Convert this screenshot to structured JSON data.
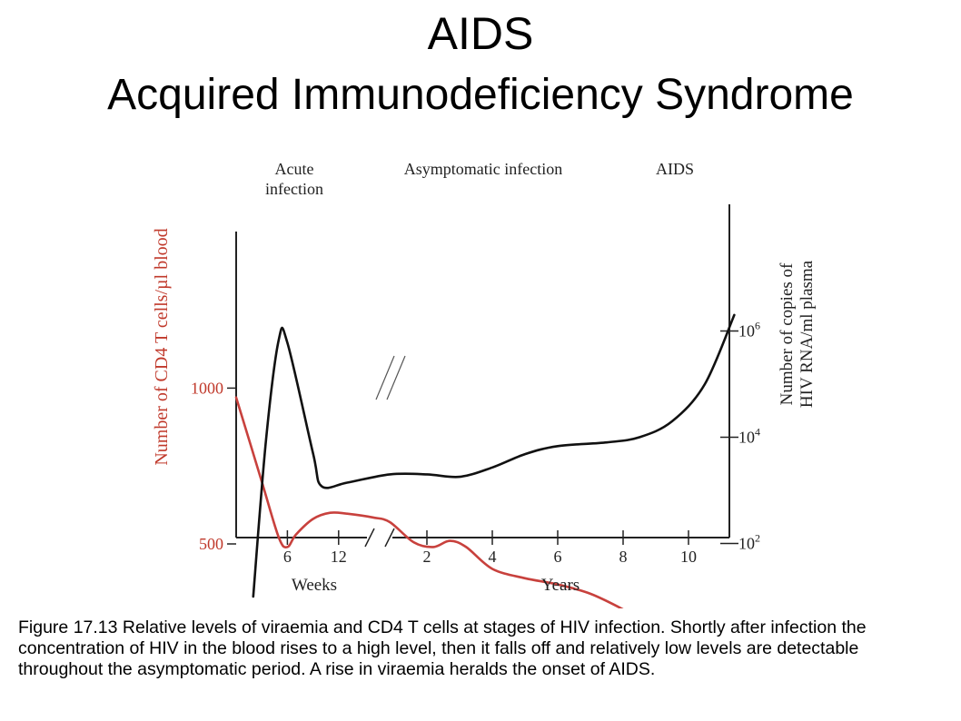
{
  "slide": {
    "title": "AIDS",
    "subtitle": "Acquired Immunodeficiency Syndrome",
    "caption": "Figure 17.13 Relative levels of viraemia and CD4 T cells at stages of HIV infection. Shortly after infection the concentration of HIV in the blood rises to a high level, then it falls off and relatively low levels are detectable throughout the asymptomatic period. A rise in viraemia heralds the onset of AIDS."
  },
  "chart_data": {
    "type": "line",
    "stages": [
      "Acute infection",
      "Asymptomatic infection",
      "AIDS"
    ],
    "stage_lines": [
      [
        "Acute",
        "infection"
      ],
      [
        "Asymptomatic infection"
      ],
      [
        "AIDS"
      ]
    ],
    "x_axis": {
      "weeks_label": "Weeks",
      "years_label": "Years",
      "weeks_ticks": [
        6,
        12
      ],
      "years_ticks": [
        2,
        4,
        6,
        8,
        10
      ],
      "break": "between 12 weeks and 2 years"
    },
    "y_left": {
      "label": "Number of CD4 T cells/µl blood",
      "ticks": [
        500,
        1000
      ],
      "color": "#c0392b"
    },
    "y_right": {
      "label_lines": [
        "Number of copies of",
        "HIV RNA/ml plasma"
      ],
      "ticks": [
        {
          "base": "10",
          "exp": "2",
          "value": 100
        },
        {
          "base": "10",
          "exp": "4",
          "value": 10000
        },
        {
          "base": "10",
          "exp": "6",
          "value": 1000000
        }
      ],
      "scale": "log",
      "color": "#000000"
    },
    "series": [
      {
        "name": "CD4 T cells",
        "color": "#c8413d",
        "axis": "left",
        "points": [
          [
            "week",
            0,
            970
          ],
          [
            "week",
            3,
            700
          ],
          [
            "week",
            5,
            520
          ],
          [
            "week",
            6,
            490
          ],
          [
            "week",
            7,
            530
          ],
          [
            "week",
            9,
            580
          ],
          [
            "week",
            11,
            600
          ],
          [
            "week",
            13,
            597
          ],
          [
            "week",
            16,
            585
          ],
          [
            "week",
            18,
            570
          ],
          [
            "year",
            1.6,
            505
          ],
          [
            "year",
            2.2,
            490
          ],
          [
            "year",
            2.7,
            510
          ],
          [
            "year",
            3.2,
            490
          ],
          [
            "year",
            4,
            420
          ],
          [
            "year",
            5,
            390
          ],
          [
            "year",
            6,
            370
          ],
          [
            "year",
            7,
            340
          ],
          [
            "year",
            8,
            290
          ],
          [
            "year",
            9,
            230
          ],
          [
            "year",
            10,
            160
          ],
          [
            "year",
            11,
            95
          ]
        ]
      },
      {
        "name": "HIV RNA",
        "color": "#111111",
        "axis": "right",
        "points": [
          [
            "week",
            2,
            10
          ],
          [
            "week",
            3.5,
            9000
          ],
          [
            "week",
            5,
            700000
          ],
          [
            "week",
            6,
            600000
          ],
          [
            "week",
            9,
            5000
          ],
          [
            "week",
            10,
            1200
          ],
          [
            "week",
            13,
            1400
          ],
          [
            "week",
            18,
            2000
          ],
          [
            "year",
            2,
            2000
          ],
          [
            "year",
            3,
            1800
          ],
          [
            "year",
            4,
            2700
          ],
          [
            "year",
            5,
            4800
          ],
          [
            "year",
            6,
            6800
          ],
          [
            "year",
            7.5,
            8000
          ],
          [
            "year",
            8.5,
            10000
          ],
          [
            "year",
            9.5,
            20000
          ],
          [
            "year",
            10.5,
            100000
          ],
          [
            "year",
            11.4,
            2000000
          ]
        ]
      }
    ]
  }
}
